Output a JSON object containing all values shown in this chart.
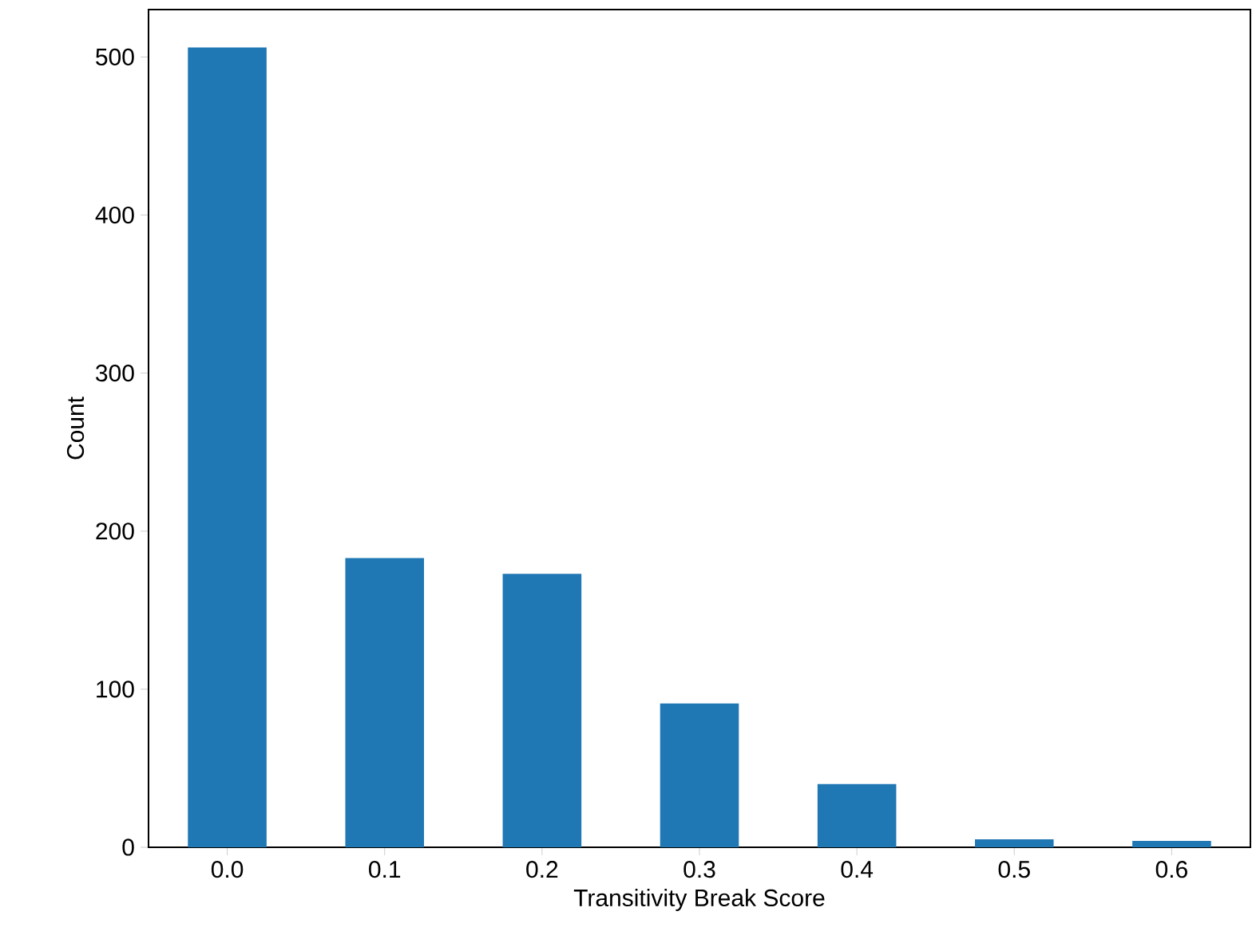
{
  "chart_data": {
    "type": "bar",
    "xlabel": "Transitivity Break Score",
    "ylabel": "Count",
    "categories": [
      "0.0",
      "0.1",
      "0.2",
      "0.3",
      "0.4",
      "0.5",
      "0.6"
    ],
    "values": [
      506,
      183,
      173,
      91,
      40,
      5,
      4
    ],
    "color": "#1f77b4",
    "ylim": [
      0,
      530
    ],
    "yticks": [
      0,
      100,
      200,
      300,
      400,
      500
    ],
    "grid": false
  }
}
